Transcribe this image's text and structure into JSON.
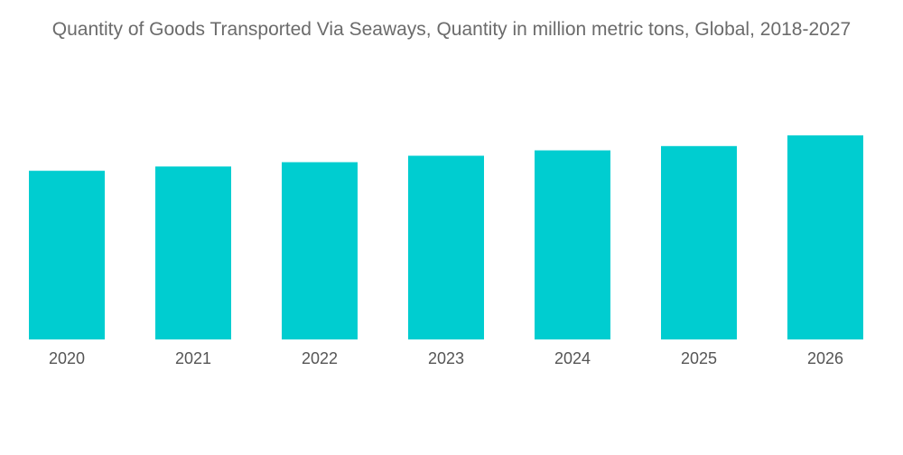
{
  "chart_data": {
    "type": "bar",
    "title": "Quantity of Goods Transported Via Seaways, Quantity in million metric tons, Global, 2018-2027",
    "categories": [
      "2020",
      "2021",
      "2022",
      "2023",
      "2024",
      "2025",
      "2026"
    ],
    "values": [
      157,
      161,
      165,
      171,
      176,
      180,
      190
    ],
    "xlabel": "",
    "ylabel": "",
    "ylim": [
      0,
      200
    ],
    "grid": false,
    "legend": "none",
    "colors": {
      "bar": "#00CDD0"
    }
  }
}
